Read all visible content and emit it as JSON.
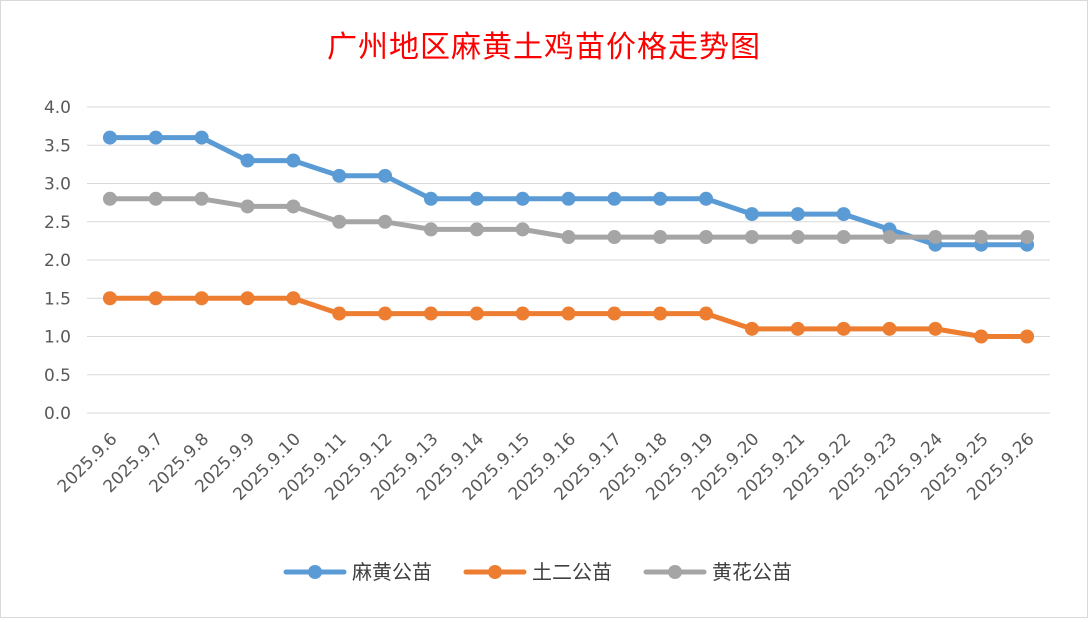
{
  "chart_data": {
    "type": "line",
    "title": "广州地区麻黄土鸡苗价格走势图",
    "categories": [
      "2025.9.6",
      "2025.9.7",
      "2025.9.8",
      "2025.9.9",
      "2025.9.10",
      "2025.9.11",
      "2025.9.12",
      "2025.9.13",
      "2025.9.14",
      "2025.9.15",
      "2025.9.16",
      "2025.9.17",
      "2025.9.18",
      "2025.9.19",
      "2025.9.20",
      "2025.9.21",
      "2025.9.22",
      "2025.9.23",
      "2025.9.24",
      "2025.9.25",
      "2025.9.26"
    ],
    "series": [
      {
        "name": "麻黄公苗",
        "color": "#5b9bd5",
        "values": [
          3.6,
          3.6,
          3.6,
          3.3,
          3.3,
          3.1,
          3.1,
          2.8,
          2.8,
          2.8,
          2.8,
          2.8,
          2.8,
          2.8,
          2.6,
          2.6,
          2.6,
          2.4,
          2.2,
          2.2,
          2.2
        ]
      },
      {
        "name": "土二公苗",
        "color": "#ed7d31",
        "values": [
          1.5,
          1.5,
          1.5,
          1.5,
          1.5,
          1.3,
          1.3,
          1.3,
          1.3,
          1.3,
          1.3,
          1.3,
          1.3,
          1.3,
          1.1,
          1.1,
          1.1,
          1.1,
          1.1,
          1.0,
          1.0
        ]
      },
      {
        "name": "黄花公苗",
        "color": "#a5a5a5",
        "values": [
          2.8,
          2.8,
          2.8,
          2.7,
          2.7,
          2.5,
          2.5,
          2.4,
          2.4,
          2.4,
          2.3,
          2.3,
          2.3,
          2.3,
          2.3,
          2.3,
          2.3,
          2.3,
          2.3,
          2.3,
          2.3
        ]
      }
    ],
    "ylim": [
      0,
      4
    ],
    "yticks": [
      "0.0",
      "0.5",
      "1.0",
      "1.5",
      "2.0",
      "2.5",
      "3.0",
      "3.5",
      "4.0"
    ],
    "grid": true,
    "legend": "bottom",
    "title_color": "#ff0000"
  }
}
